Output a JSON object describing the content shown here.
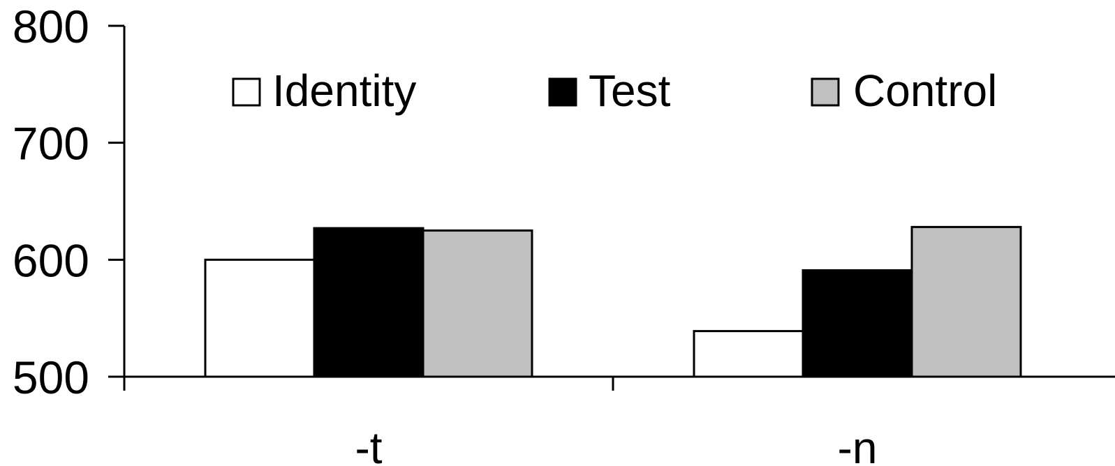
{
  "chart_data": {
    "type": "bar",
    "categories": [
      "-t",
      "-n"
    ],
    "series": [
      {
        "name": "Identity",
        "values": [
          600,
          539
        ],
        "color": "#ffffff"
      },
      {
        "name": "Test",
        "values": [
          627,
          591
        ],
        "color": "#000000"
      },
      {
        "name": "Control",
        "values": [
          625,
          628
        ],
        "color": "#c0c0c0"
      }
    ],
    "ylim": [
      500,
      800
    ],
    "yticks": [
      500,
      600,
      700,
      800
    ],
    "grid": false,
    "legend_position": "top"
  }
}
